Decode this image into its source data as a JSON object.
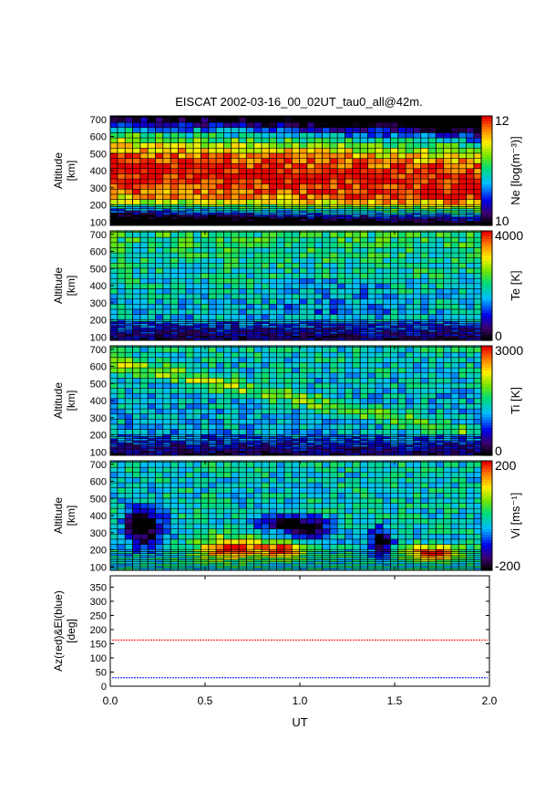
{
  "chart_data": {
    "type": "heatmap",
    "title": "EISCAT 2002-03-16_00_02UT_tau0_all@42m.",
    "xlabel": "UT",
    "xlim": [
      0.0,
      2.0
    ],
    "xticks": [
      "0.0",
      "0.5",
      "1.0",
      "1.5",
      "2.0"
    ],
    "panels": [
      {
        "key": "ne",
        "ylabel": [
          "Altitude",
          "[km]"
        ],
        "ylim": [
          80,
          720
        ],
        "yticks": [
          100,
          200,
          300,
          400,
          500,
          600,
          700
        ],
        "colorbar_label": "Ne [log(m⁻³)]",
        "colorbar_range": [
          10,
          12
        ],
        "colorbar_tick_labels": [
          "12",
          "10"
        ],
        "colormap": "rainbow"
      },
      {
        "key": "te",
        "ylabel": [
          "Altitude",
          "[km]"
        ],
        "ylim": [
          80,
          720
        ],
        "yticks": [
          100,
          200,
          300,
          400,
          500,
          600,
          700
        ],
        "colorbar_label": "Te [K]",
        "colorbar_range": [
          0,
          4000
        ],
        "colorbar_tick_labels": [
          "4000",
          "0"
        ],
        "colormap": "rainbow"
      },
      {
        "key": "ti",
        "ylabel": [
          "Altitude",
          "[km]"
        ],
        "ylim": [
          80,
          720
        ],
        "yticks": [
          100,
          200,
          300,
          400,
          500,
          600,
          700
        ],
        "colorbar_label": "Ti [K]",
        "colorbar_range": [
          0,
          3000
        ],
        "colorbar_tick_labels": [
          "3000",
          "0"
        ],
        "colormap": "rainbow"
      },
      {
        "key": "vi",
        "ylabel": [
          "Altitude",
          "[km]"
        ],
        "ylim": [
          80,
          720
        ],
        "yticks": [
          100,
          200,
          300,
          400,
          500,
          600,
          700
        ],
        "colorbar_label": "Vi [ms⁻¹]",
        "colorbar_range": [
          -200,
          200
        ],
        "colorbar_tick_labels": [
          "200",
          "-200"
        ],
        "colormap": "rainbow"
      }
    ],
    "pointing_panel": {
      "ylabel": [
        "Az(red)&El(blue)",
        "[deg]"
      ],
      "ylim": [
        0,
        390
      ],
      "yticks": [
        0,
        50,
        100,
        150,
        200,
        250,
        300,
        350
      ],
      "series": [
        {
          "color": "#ff0000",
          "value": 163
        },
        {
          "color": "#0000ff",
          "value": 30
        }
      ]
    }
  }
}
